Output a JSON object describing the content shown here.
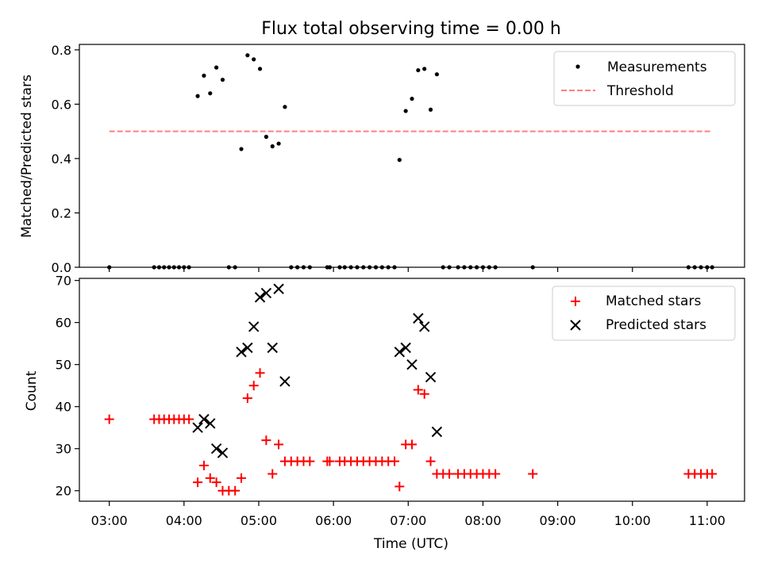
{
  "figure": {
    "title": "Flux total observing time = 0.00 h"
  },
  "chart_data": [
    {
      "type": "scatter",
      "ylabel": "Matched/Predicted stars",
      "xlabel": "",
      "xlim_hours": [
        2.6,
        11.5
      ],
      "ylim": [
        0,
        0.82
      ],
      "yticks": [
        0.0,
        0.2,
        0.4,
        0.6,
        0.8
      ],
      "ytick_labels": [
        "0.0",
        "0.2",
        "0.4",
        "0.6",
        "0.8"
      ],
      "legend": {
        "placement": "top-right",
        "entries": [
          "Measurements",
          "Threshold"
        ]
      },
      "grid": false,
      "series": [
        {
          "name": "Measurements",
          "marker": "dot",
          "color": "#000000",
          "points": [
            [
              "03:00",
              0.0
            ],
            [
              "03:36",
              0.0
            ],
            [
              "03:40",
              0.0
            ],
            [
              "03:44",
              0.0
            ],
            [
              "03:48",
              0.0
            ],
            [
              "03:52",
              0.0
            ],
            [
              "03:56",
              0.0
            ],
            [
              "04:00",
              0.0
            ],
            [
              "04:04",
              0.0
            ],
            [
              "04:11",
              0.63
            ],
            [
              "04:16",
              0.705
            ],
            [
              "04:21",
              0.64
            ],
            [
              "04:26",
              0.735
            ],
            [
              "04:31",
              0.69
            ],
            [
              "04:36",
              0.0
            ],
            [
              "04:41",
              0.0
            ],
            [
              "04:46",
              0.435
            ],
            [
              "04:51",
              0.78
            ],
            [
              "04:56",
              0.765
            ],
            [
              "05:01",
              0.73
            ],
            [
              "05:06",
              0.48
            ],
            [
              "05:11",
              0.445
            ],
            [
              "05:16",
              0.455
            ],
            [
              "05:21",
              0.59
            ],
            [
              "05:26",
              0.0
            ],
            [
              "05:31",
              0.0
            ],
            [
              "05:36",
              0.0
            ],
            [
              "05:41",
              0.0
            ],
            [
              "05:55",
              0.0
            ],
            [
              "05:57",
              0.0
            ],
            [
              "06:05",
              0.0
            ],
            [
              "06:09",
              0.0
            ],
            [
              "06:14",
              0.0
            ],
            [
              "06:19",
              0.0
            ],
            [
              "06:24",
              0.0
            ],
            [
              "06:29",
              0.0
            ],
            [
              "06:34",
              0.0
            ],
            [
              "06:39",
              0.0
            ],
            [
              "06:44",
              0.0
            ],
            [
              "06:49",
              0.0
            ],
            [
              "06:53",
              0.395
            ],
            [
              "06:58",
              0.575
            ],
            [
              "07:03",
              0.62
            ],
            [
              "07:08",
              0.725
            ],
            [
              "07:13",
              0.73
            ],
            [
              "07:18",
              0.58
            ],
            [
              "07:23",
              0.71
            ],
            [
              "07:28",
              0.0
            ],
            [
              "07:33",
              0.0
            ],
            [
              "07:40",
              0.0
            ],
            [
              "07:45",
              0.0
            ],
            [
              "07:50",
              0.0
            ],
            [
              "07:55",
              0.0
            ],
            [
              "08:00",
              0.0
            ],
            [
              "08:05",
              0.0
            ],
            [
              "08:10",
              0.0
            ],
            [
              "08:40",
              0.0
            ],
            [
              "10:45",
              0.0
            ],
            [
              "10:50",
              0.0
            ],
            [
              "10:55",
              0.0
            ],
            [
              "11:00",
              0.0
            ],
            [
              "11:04",
              0.0
            ]
          ]
        },
        {
          "name": "Threshold",
          "marker": "dashed-line",
          "color": "#ff7f7f",
          "points": [
            [
              "03:00",
              0.5
            ],
            [
              "11:04",
              0.5
            ]
          ]
        }
      ]
    },
    {
      "type": "scatter",
      "ylabel": "Count",
      "xlabel": "Time (UTC)",
      "xlim_hours": [
        2.6,
        11.5
      ],
      "ylim": [
        17.5,
        70.5
      ],
      "yticks": [
        20,
        30,
        40,
        50,
        60,
        70
      ],
      "ytick_labels": [
        "20",
        "30",
        "40",
        "50",
        "60",
        "70"
      ],
      "xticks_hours": [
        3,
        4,
        5,
        6,
        7,
        8,
        9,
        10,
        11
      ],
      "xtick_labels": [
        "03:00",
        "04:00",
        "05:00",
        "06:00",
        "07:00",
        "08:00",
        "09:00",
        "10:00",
        "11:00"
      ],
      "legend": {
        "placement": "top-right",
        "entries": [
          "Matched stars",
          "Predicted stars"
        ]
      },
      "grid": false,
      "series": [
        {
          "name": "Matched stars",
          "marker": "plus",
          "color": "#ff0000",
          "points": [
            [
              "03:00",
              37
            ],
            [
              "03:36",
              37
            ],
            [
              "03:40",
              37
            ],
            [
              "03:44",
              37
            ],
            [
              "03:48",
              37
            ],
            [
              "03:52",
              37
            ],
            [
              "03:56",
              37
            ],
            [
              "04:00",
              37
            ],
            [
              "04:04",
              37
            ],
            [
              "04:11",
              22
            ],
            [
              "04:16",
              26
            ],
            [
              "04:21",
              23
            ],
            [
              "04:26",
              22
            ],
            [
              "04:31",
              20
            ],
            [
              "04:36",
              20
            ],
            [
              "04:41",
              20
            ],
            [
              "04:46",
              23
            ],
            [
              "04:51",
              42
            ],
            [
              "04:56",
              45
            ],
            [
              "05:01",
              48
            ],
            [
              "05:06",
              32
            ],
            [
              "05:11",
              24
            ],
            [
              "05:16",
              31
            ],
            [
              "05:21",
              27
            ],
            [
              "05:26",
              27
            ],
            [
              "05:31",
              27
            ],
            [
              "05:36",
              27
            ],
            [
              "05:41",
              27
            ],
            [
              "05:55",
              27
            ],
            [
              "05:57",
              27
            ],
            [
              "06:05",
              27
            ],
            [
              "06:09",
              27
            ],
            [
              "06:14",
              27
            ],
            [
              "06:19",
              27
            ],
            [
              "06:24",
              27
            ],
            [
              "06:29",
              27
            ],
            [
              "06:34",
              27
            ],
            [
              "06:39",
              27
            ],
            [
              "06:44",
              27
            ],
            [
              "06:49",
              27
            ],
            [
              "06:53",
              21
            ],
            [
              "06:58",
              31
            ],
            [
              "07:03",
              31
            ],
            [
              "07:08",
              44
            ],
            [
              "07:13",
              43
            ],
            [
              "07:18",
              27
            ],
            [
              "07:23",
              24
            ],
            [
              "07:28",
              24
            ],
            [
              "07:33",
              24
            ],
            [
              "07:40",
              24
            ],
            [
              "07:45",
              24
            ],
            [
              "07:50",
              24
            ],
            [
              "07:55",
              24
            ],
            [
              "08:00",
              24
            ],
            [
              "08:05",
              24
            ],
            [
              "08:10",
              24
            ],
            [
              "08:40",
              24
            ],
            [
              "10:45",
              24
            ],
            [
              "10:50",
              24
            ],
            [
              "10:55",
              24
            ],
            [
              "11:00",
              24
            ],
            [
              "11:04",
              24
            ]
          ]
        },
        {
          "name": "Predicted stars",
          "marker": "x",
          "color": "#000000",
          "points": [
            [
              "04:11",
              35
            ],
            [
              "04:16",
              37
            ],
            [
              "04:21",
              36
            ],
            [
              "04:26",
              30
            ],
            [
              "04:31",
              29
            ],
            [
              "04:46",
              53
            ],
            [
              "04:51",
              54
            ],
            [
              "04:56",
              59
            ],
            [
              "05:01",
              66
            ],
            [
              "05:06",
              67
            ],
            [
              "05:11",
              54
            ],
            [
              "05:16",
              68
            ],
            [
              "05:21",
              46
            ],
            [
              "06:53",
              53
            ],
            [
              "06:58",
              54
            ],
            [
              "07:03",
              50
            ],
            [
              "07:08",
              61
            ],
            [
              "07:13",
              59
            ],
            [
              "07:18",
              47
            ],
            [
              "07:23",
              34
            ]
          ]
        }
      ]
    }
  ]
}
